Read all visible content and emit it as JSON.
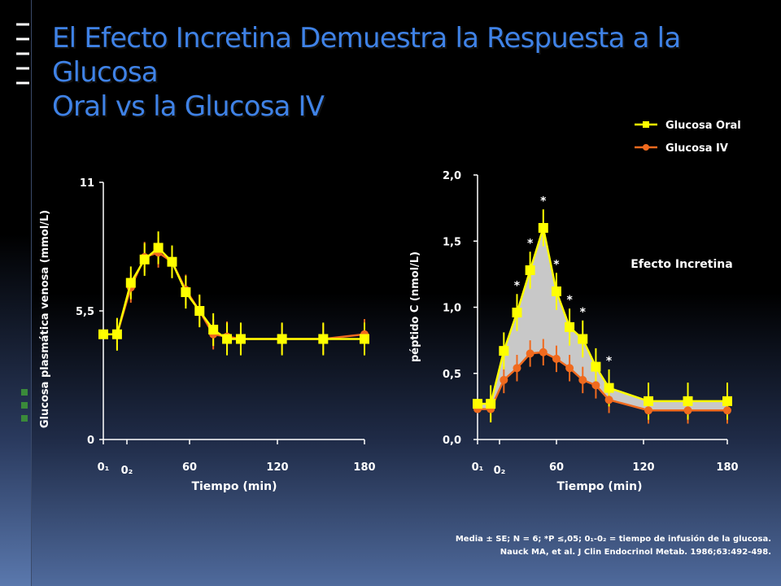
{
  "slide": {
    "title_line1": "El Efecto Incretina Demuestra la Respuesta a la Glucosa",
    "title_line2": "Oral vs la Glucosa IV",
    "footnote_line1": "Media ± SE; N = 6; *P ≤,05; 0₁-0₂ = tiempo de infusión de la glucosa.",
    "footnote_line2": "Nauck MA, et al. J Clin Endocrinol Metab. 1986;63:492-498."
  },
  "legend": {
    "oral": "Glucosa Oral",
    "iv": "Glucosa IV"
  },
  "colors": {
    "oral": "#ffff00",
    "iv": "#f06a1e",
    "incretin_fill": "#c8c8c8",
    "title": "#3f82e6"
  },
  "chart_data": [
    {
      "type": "line",
      "ylabel": "Glucosa plasmática venosa (mmol/L)",
      "xlabel": "Tiempo (min)",
      "y_ticks": [
        "0",
        "5,5",
        "11"
      ],
      "x_ticks": [
        "0₁",
        "0₂",
        "60",
        "120",
        "180"
      ],
      "ylim": [
        0,
        11
      ],
      "series": [
        {
          "name": "Glucosa Oral",
          "x": [
            -10,
            0,
            10,
            20,
            30,
            40,
            50,
            60,
            70,
            80,
            90,
            120,
            150,
            180
          ],
          "y": [
            4.5,
            4.5,
            6.7,
            7.7,
            8.2,
            7.6,
            6.3,
            5.5,
            4.7,
            4.3,
            4.3,
            4.3,
            4.3,
            4.3
          ]
        },
        {
          "name": "Glucosa IV",
          "x": [
            -10,
            0,
            10,
            20,
            30,
            40,
            50,
            60,
            70,
            80,
            90,
            120,
            150,
            180
          ],
          "y": [
            4.5,
            4.5,
            6.5,
            7.8,
            8.0,
            7.6,
            6.4,
            5.5,
            4.5,
            4.4,
            4.3,
            4.3,
            4.3,
            4.5
          ]
        }
      ],
      "grid": false
    },
    {
      "type": "line",
      "ylabel": "péptido C (nmol/L)",
      "xlabel": "Tiempo (min)",
      "y_ticks": [
        "0,0",
        "0,5",
        "1,0",
        "1,5",
        "2,0"
      ],
      "x_ticks": [
        "0₁",
        "0₂",
        "60",
        "120",
        "180"
      ],
      "ylim": [
        0,
        2
      ],
      "annotation": "Efecto Incretina",
      "significance_marker": "*",
      "series": [
        {
          "name": "Glucosa Oral",
          "x": [
            -10,
            0,
            10,
            20,
            30,
            40,
            50,
            60,
            70,
            80,
            90,
            120,
            150,
            180
          ],
          "y": [
            0.27,
            0.27,
            0.67,
            0.96,
            1.28,
            1.6,
            1.12,
            0.85,
            0.76,
            0.55,
            0.39,
            0.29,
            0.29,
            0.29
          ],
          "significant": [
            false,
            false,
            false,
            true,
            true,
            true,
            true,
            true,
            true,
            false,
            true,
            false,
            false,
            false
          ]
        },
        {
          "name": "Glucosa IV",
          "x": [
            -10,
            0,
            10,
            20,
            30,
            40,
            50,
            60,
            70,
            80,
            90,
            120,
            150,
            180
          ],
          "y": [
            0.23,
            0.23,
            0.45,
            0.54,
            0.65,
            0.66,
            0.61,
            0.54,
            0.45,
            0.41,
            0.3,
            0.22,
            0.22,
            0.22
          ]
        }
      ],
      "grid": false
    }
  ]
}
